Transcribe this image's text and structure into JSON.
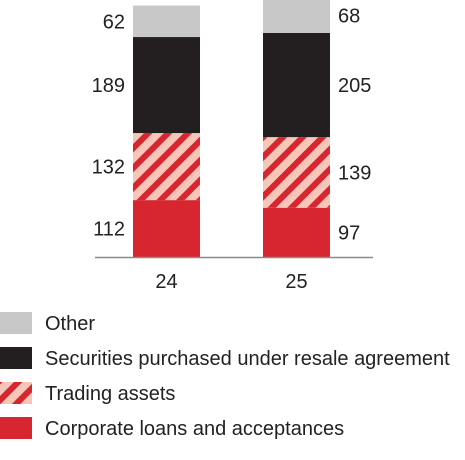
{
  "chart_data": {
    "type": "bar",
    "stacked": true,
    "categories": [
      "24",
      "25"
    ],
    "series": [
      {
        "name": "Corporate loans and acceptances",
        "values": [
          112,
          97
        ],
        "color": "#d7262f",
        "pattern": "solid"
      },
      {
        "name": "Trading assets",
        "values": [
          132,
          139
        ],
        "color": "#d7262f",
        "pattern": "hatched"
      },
      {
        "name": "Securities purchased under resale agreement",
        "values": [
          189,
          205
        ],
        "color": "#231f20",
        "pattern": "solid"
      },
      {
        "name": "Other",
        "values": [
          62,
          68
        ],
        "color": "#c8c8c8",
        "pattern": "solid"
      }
    ],
    "legend": {
      "placement": "bottom",
      "order": [
        "Other",
        "Securities purchased under resale agreement",
        "Trading assets",
        "Corporate loans and acceptances"
      ]
    },
    "grid": false
  }
}
